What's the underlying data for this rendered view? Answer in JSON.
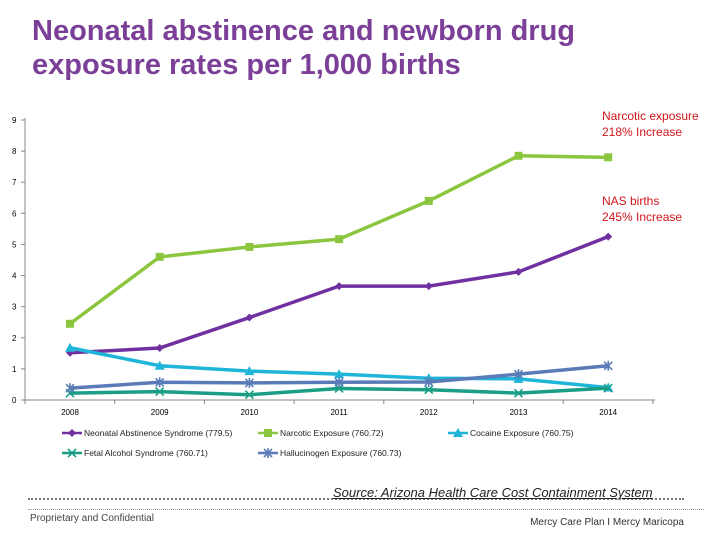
{
  "title": [
    "Neonatal abstinence and newborn drug",
    "exposure rates per 1,000 births"
  ],
  "chart_data": {
    "type": "line",
    "categories": [
      "2008",
      "2009",
      "2010",
      "2011",
      "2012",
      "2013",
      "2014"
    ],
    "ylim": [
      0,
      9
    ],
    "yticks": [
      "0",
      "1",
      "2",
      "3",
      "4",
      "5",
      "6",
      "7",
      "8",
      "9"
    ],
    "grid": false,
    "legend_placement": "bottom",
    "series": [
      {
        "name": "Neonatal Abstinence Syndrome (779.5)",
        "color": "#7030a0",
        "marker": "diamond",
        "values": [
          1.52,
          1.67,
          2.65,
          3.66,
          3.66,
          4.12,
          5.25
        ]
      },
      {
        "name": "Narcotic Exposure (760.72)",
        "color": "#8cc63f",
        "marker": "square",
        "values": [
          2.45,
          4.6,
          4.92,
          5.17,
          6.4,
          7.85,
          7.8
        ]
      },
      {
        "name": "Cocaine Exposure (760.75)",
        "color": "#1fb5d8",
        "marker": "triangle",
        "values": [
          1.68,
          1.1,
          0.93,
          0.83,
          0.7,
          0.68,
          0.4
        ]
      },
      {
        "name": "Fetal Alcohol Syndrome (760.71)",
        "color": "#1a9e85",
        "marker": "x",
        "values": [
          0.22,
          0.27,
          0.17,
          0.37,
          0.33,
          0.22,
          0.38
        ]
      },
      {
        "name": "Hallucinogen Exposure (760.73)",
        "color": "#5b7bb8",
        "marker": "star",
        "values": [
          0.38,
          0.57,
          0.55,
          0.57,
          0.58,
          0.83,
          1.1
        ]
      }
    ],
    "annotations": [
      {
        "line1": "Narcotic exposure",
        "line2": "218% Increase"
      },
      {
        "line1": "NAS births",
        "line2": "245% Increase"
      }
    ]
  },
  "source": "Source: Arizona Health Care Cost Containment System",
  "footer": {
    "left": "Proprietary and Confidential",
    "right": "Mercy Care Plan  I Mercy Maricopa"
  }
}
